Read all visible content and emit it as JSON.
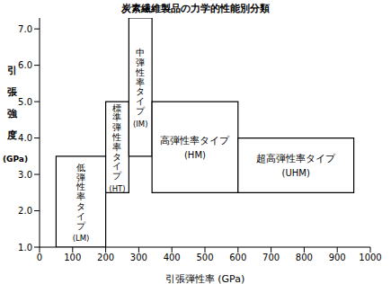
{
  "chart_data": {
    "type": "range_boxes",
    "title": "炭素繊維製品の力学的性能別分類",
    "x_label": "引張弾性率 (GPa)",
    "y_label": "引張強度",
    "y_unit": "(GPa)",
    "color": "#000000",
    "boxes": [
      {
        "name": "低弾性率タイプ",
        "code": "(LM)",
        "x": [
          50,
          200
        ],
        "y": [
          1.0,
          3.5
        ]
      },
      {
        "name": "標準弾性率タイプ",
        "code": "(HT)",
        "x": [
          200,
          270
        ],
        "y": [
          2.5,
          5.0
        ]
      },
      {
        "name": "中弾性率タイプ",
        "code": "(IM)",
        "x": [
          270,
          340
        ],
        "y": [
          3.5,
          7.3
        ]
      },
      {
        "name": "高弾性率タイプ",
        "code": "(HM)",
        "x": [
          340,
          600
        ],
        "y": [
          2.5,
          5.0
        ]
      },
      {
        "name": "超高弾性率タイプ",
        "code": "(UHM)",
        "x": [
          600,
          950
        ],
        "y": [
          2.5,
          4.0
        ]
      }
    ],
    "xlim": [
      0,
      1000
    ],
    "xticks": [
      0,
      100,
      200,
      300,
      400,
      500,
      600,
      700,
      800,
      900,
      1000
    ],
    "ylim": [
      1.0,
      7.3
    ],
    "yticks": [
      {
        "value": 1,
        "label": "1.0"
      },
      {
        "value": 2,
        "label": "2.0"
      },
      {
        "value": 3,
        "label": "3.0"
      },
      {
        "value": 4,
        "label": "4.0"
      },
      {
        "value": 5,
        "label": "5.0"
      },
      {
        "value": 6,
        "label": "6.0"
      },
      {
        "value": 7,
        "label": "7.0"
      }
    ]
  }
}
